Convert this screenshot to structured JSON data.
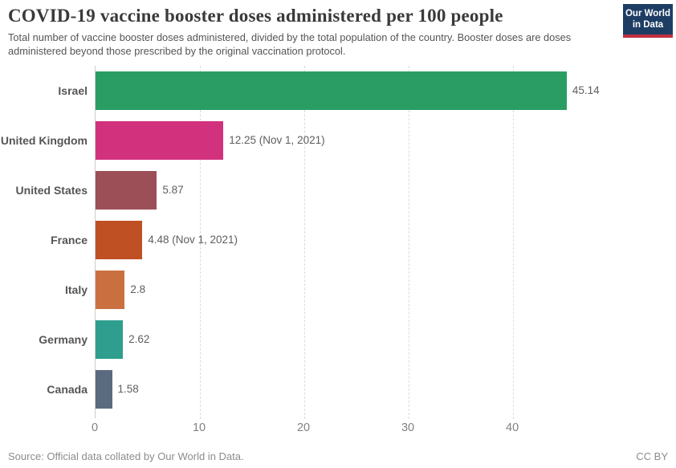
{
  "header": {
    "title": "COVID-19 vaccine booster doses administered per 100 people",
    "subtitle": "Total number of vaccine booster doses administered, divided by the total population of the country. Booster doses are doses administered beyond those prescribed by the original vaccination protocol.",
    "logo": {
      "line1": "Our World",
      "line2": "in Data",
      "bg_color": "#1d3d63",
      "stripe_color": "#bf3041"
    }
  },
  "chart_data": {
    "type": "bar",
    "orientation": "horizontal",
    "title": "COVID-19 vaccine booster doses administered per 100 people",
    "categories": [
      "Israel",
      "United Kingdom",
      "United States",
      "France",
      "Italy",
      "Germany",
      "Canada"
    ],
    "values": [
      45.14,
      12.25,
      5.87,
      4.48,
      2.8,
      2.62,
      1.58
    ],
    "value_labels": [
      "45.14",
      "12.25 (Nov 1, 2021)",
      "5.87",
      "4.48 (Nov 1, 2021)",
      "2.8",
      "2.62",
      "1.58"
    ],
    "bar_colors": [
      "#2a9d64",
      "#d2327d",
      "#9d4f57",
      "#bf5023",
      "#ca7040",
      "#2f9e8e",
      "#5b6b7f"
    ],
    "xticks": [
      0,
      10,
      20,
      30,
      40
    ],
    "xtick_labels": [
      "0",
      "10",
      "20",
      "30",
      "40"
    ],
    "xmax": 46.3,
    "xlabel": "",
    "ylabel": "",
    "grid": "vertical-dashed",
    "legend": "none"
  },
  "footer": {
    "source": "Source: Official data collated by Our World in Data.",
    "license": "CC BY"
  }
}
